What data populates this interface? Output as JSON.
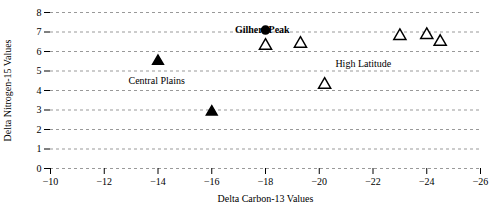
{
  "chart_data": {
    "type": "scatter",
    "xlabel": "Delta Carbon-13 Values",
    "ylabel": "Delta Nitrogen-15 Values",
    "series": [
      {
        "marker": "triangle",
        "color": "#000000",
        "x": [
          -14.0,
          -16.0
        ],
        "values": [
          5.5,
          2.9
        ]
      },
      {
        "marker": "triangle-open",
        "color": "#000000",
        "x": [
          -18.0,
          -19.3,
          -20.2,
          -23.0,
          -24.0,
          -24.5
        ],
        "values": [
          6.3,
          6.4,
          4.3,
          6.8,
          6.85,
          6.5
        ]
      },
      {
        "marker": "circle",
        "color": "#000000",
        "x": [
          -18.0
        ],
        "values": [
          7.1
        ]
      }
    ],
    "annotations": [
      {
        "text": "Gilhert Peak",
        "x": -18.9,
        "y": 7.1
      },
      {
        "text": "High Latitude",
        "x": -20.6,
        "y": 5.35
      },
      {
        "text": "Central Plains",
        "x": -15.0,
        "y": 4.5
      }
    ],
    "xlim": [
      -10,
      -26
    ],
    "ylim": [
      0,
      8
    ],
    "xticks": [
      -10,
      -12,
      -14,
      -16,
      -18,
      -20,
      -22,
      -24,
      -26
    ],
    "yticks": [
      0,
      1,
      2,
      3,
      4,
      5,
      6,
      7,
      8
    ],
    "grid": "y"
  }
}
